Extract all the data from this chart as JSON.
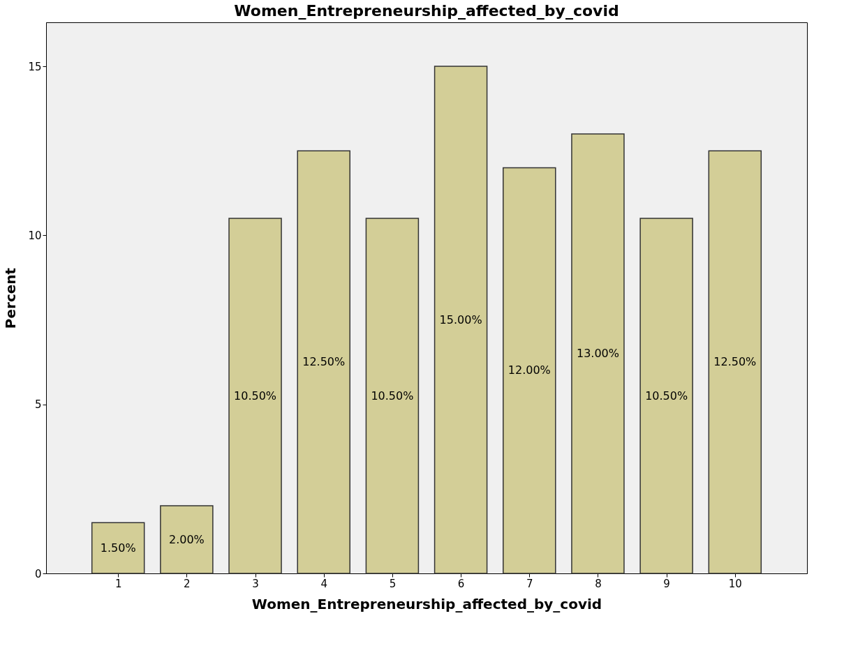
{
  "chart_data": {
    "type": "bar",
    "title": "Women_Entrepreneurship_affected_by_covid",
    "xlabel": "Women_Entrepreneurship_affected_by_covid",
    "ylabel": "Percent",
    "categories": [
      "1",
      "2",
      "3",
      "4",
      "5",
      "6",
      "7",
      "8",
      "9",
      "10"
    ],
    "values": [
      1.5,
      2,
      10.5,
      12.5,
      10.5,
      15,
      12,
      13,
      10.5,
      12.5
    ],
    "value_labels": [
      "1.50%",
      "2.00%",
      "10.50%",
      "12.50%",
      "10.50%",
      "15.00%",
      "12.00%",
      "13.00%",
      "10.50%",
      "12.50%"
    ],
    "color": "#d3ce97",
    "ylim": [
      0,
      16.3
    ],
    "yticks": [
      0,
      5,
      10,
      15
    ],
    "grid": false
  }
}
